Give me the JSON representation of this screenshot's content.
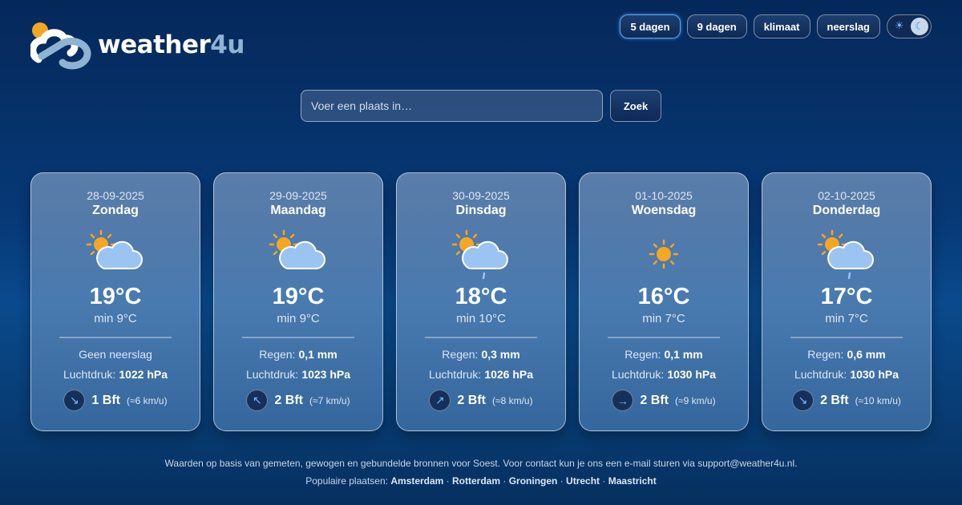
{
  "logo": {
    "text_main": "weather",
    "text_accent": "4u"
  },
  "nav": {
    "items": [
      "5 dagen",
      "9 dagen",
      "klimaat",
      "neerslag"
    ],
    "active": 0,
    "theme_toggle": "dark"
  },
  "search": {
    "placeholder": "Voer een plaats in…",
    "button": "Zoek"
  },
  "days": [
    {
      "date": "28-09-2025",
      "day": "Zondag",
      "icon": "sun-cloud-icon",
      "temp": "19°C",
      "min": "min 9°C",
      "precip_label": "Geen neerslag",
      "precip_value": "",
      "pressure_label": "Luchtdruk:",
      "pressure": "1022 hPa",
      "wind_arrow": "↘",
      "wind_bft": "1 Bft",
      "wind_kmh": "(≈6 km/u)"
    },
    {
      "date": "29-09-2025",
      "day": "Maandag",
      "icon": "sun-cloud-icon",
      "temp": "19°C",
      "min": "min 9°C",
      "precip_label": "Regen:",
      "precip_value": "0,1 mm",
      "pressure_label": "Luchtdruk:",
      "pressure": "1023 hPa",
      "wind_arrow": "↖",
      "wind_bft": "2 Bft",
      "wind_kmh": "(≈7 km/u)"
    },
    {
      "date": "30-09-2025",
      "day": "Dinsdag",
      "icon": "sun-cloud-rain-icon",
      "temp": "18°C",
      "min": "min 10°C",
      "precip_label": "Regen:",
      "precip_value": "0,3 mm",
      "pressure_label": "Luchtdruk:",
      "pressure": "1026 hPa",
      "wind_arrow": "↗",
      "wind_bft": "2 Bft",
      "wind_kmh": "(≈8 km/u)"
    },
    {
      "date": "01-10-2025",
      "day": "Woensdag",
      "icon": "sun-icon",
      "temp": "16°C",
      "min": "min 7°C",
      "precip_label": "Regen:",
      "precip_value": "0,1 mm",
      "pressure_label": "Luchtdruk:",
      "pressure": "1030 hPa",
      "wind_arrow": "→",
      "wind_bft": "2 Bft",
      "wind_kmh": "(≈9 km/u)"
    },
    {
      "date": "02-10-2025",
      "day": "Donderdag",
      "icon": "sun-cloud-rain-icon",
      "temp": "17°C",
      "min": "min 7°C",
      "precip_label": "Regen:",
      "precip_value": "0,6 mm",
      "pressure_label": "Luchtdruk:",
      "pressure": "1030 hPa",
      "wind_arrow": "↘",
      "wind_bft": "2 Bft",
      "wind_kmh": "(≈10 km/u)"
    }
  ],
  "footer": {
    "line1": "Waarden op basis van gemeten, gewogen en gebundelde bronnen voor Soest. Voor contact kun je ons een e-mail sturen via support@weather4u.nl.",
    "popular_label": "Populaire plaatsen:",
    "places": [
      "Amsterdam",
      "Rotterdam",
      "Groningen",
      "Utrecht",
      "Maastricht"
    ]
  }
}
